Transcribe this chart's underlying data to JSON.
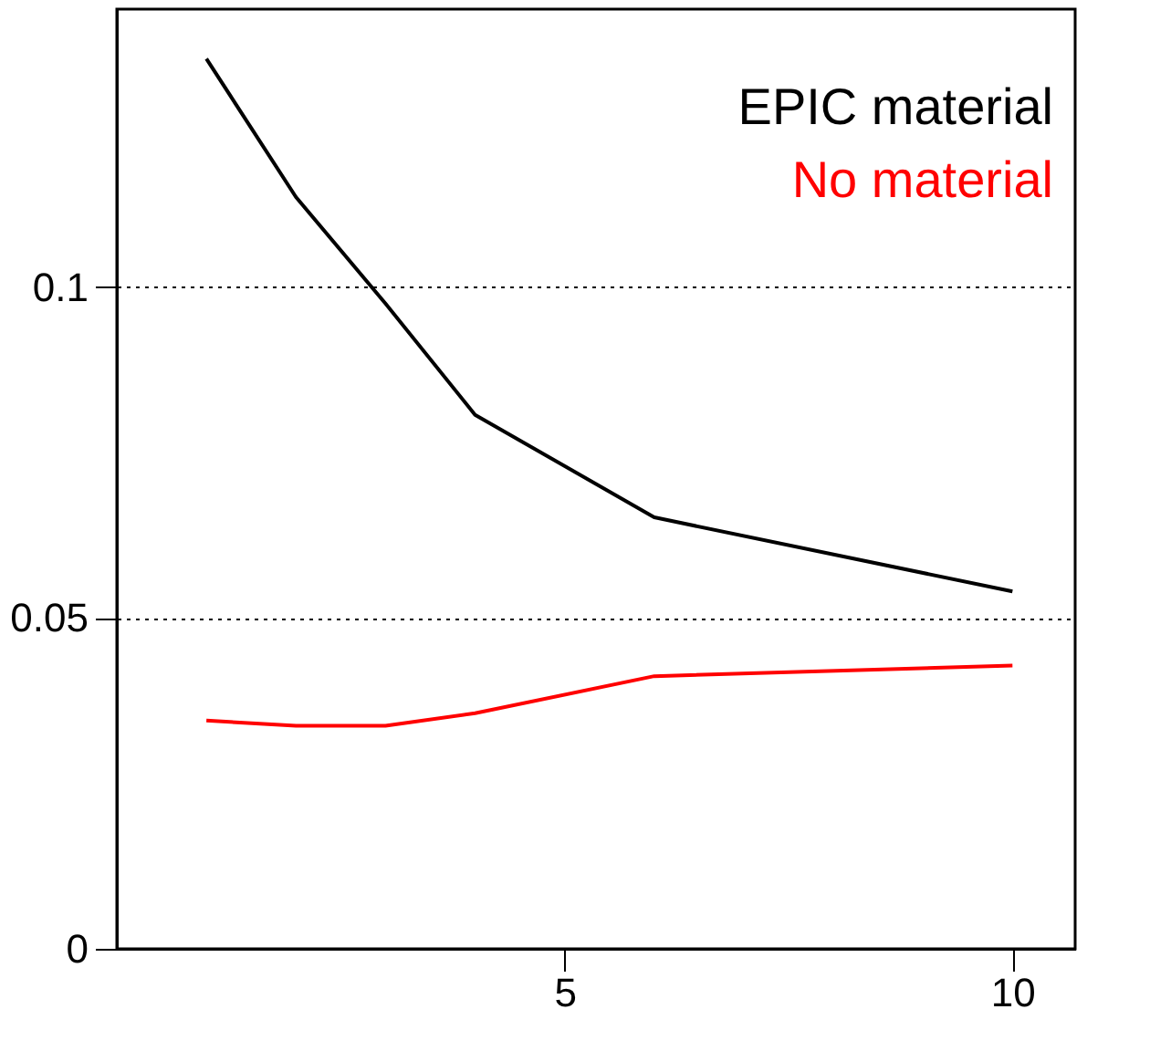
{
  "chart_data": {
    "type": "line",
    "x": [
      1,
      2,
      3,
      4,
      6,
      10
    ],
    "series": [
      {
        "name": "EPIC material",
        "color": "#000000",
        "values": [
          0.1345,
          0.1136,
          0.0975,
          0.0807,
          0.0652,
          0.054
        ]
      },
      {
        "name": "No material",
        "color": "#ff0000",
        "values": [
          0.0345,
          0.0337,
          0.0337,
          0.0356,
          0.0412,
          0.0428
        ]
      }
    ],
    "xlim": [
      0,
      10.7
    ],
    "xticks": [
      5,
      10
    ],
    "ylim": [
      0,
      0.142
    ],
    "yticks": [
      0,
      0.05,
      0.1
    ],
    "grid": "y",
    "legend": "top right",
    "marker": "none",
    "line_style": "solid"
  }
}
